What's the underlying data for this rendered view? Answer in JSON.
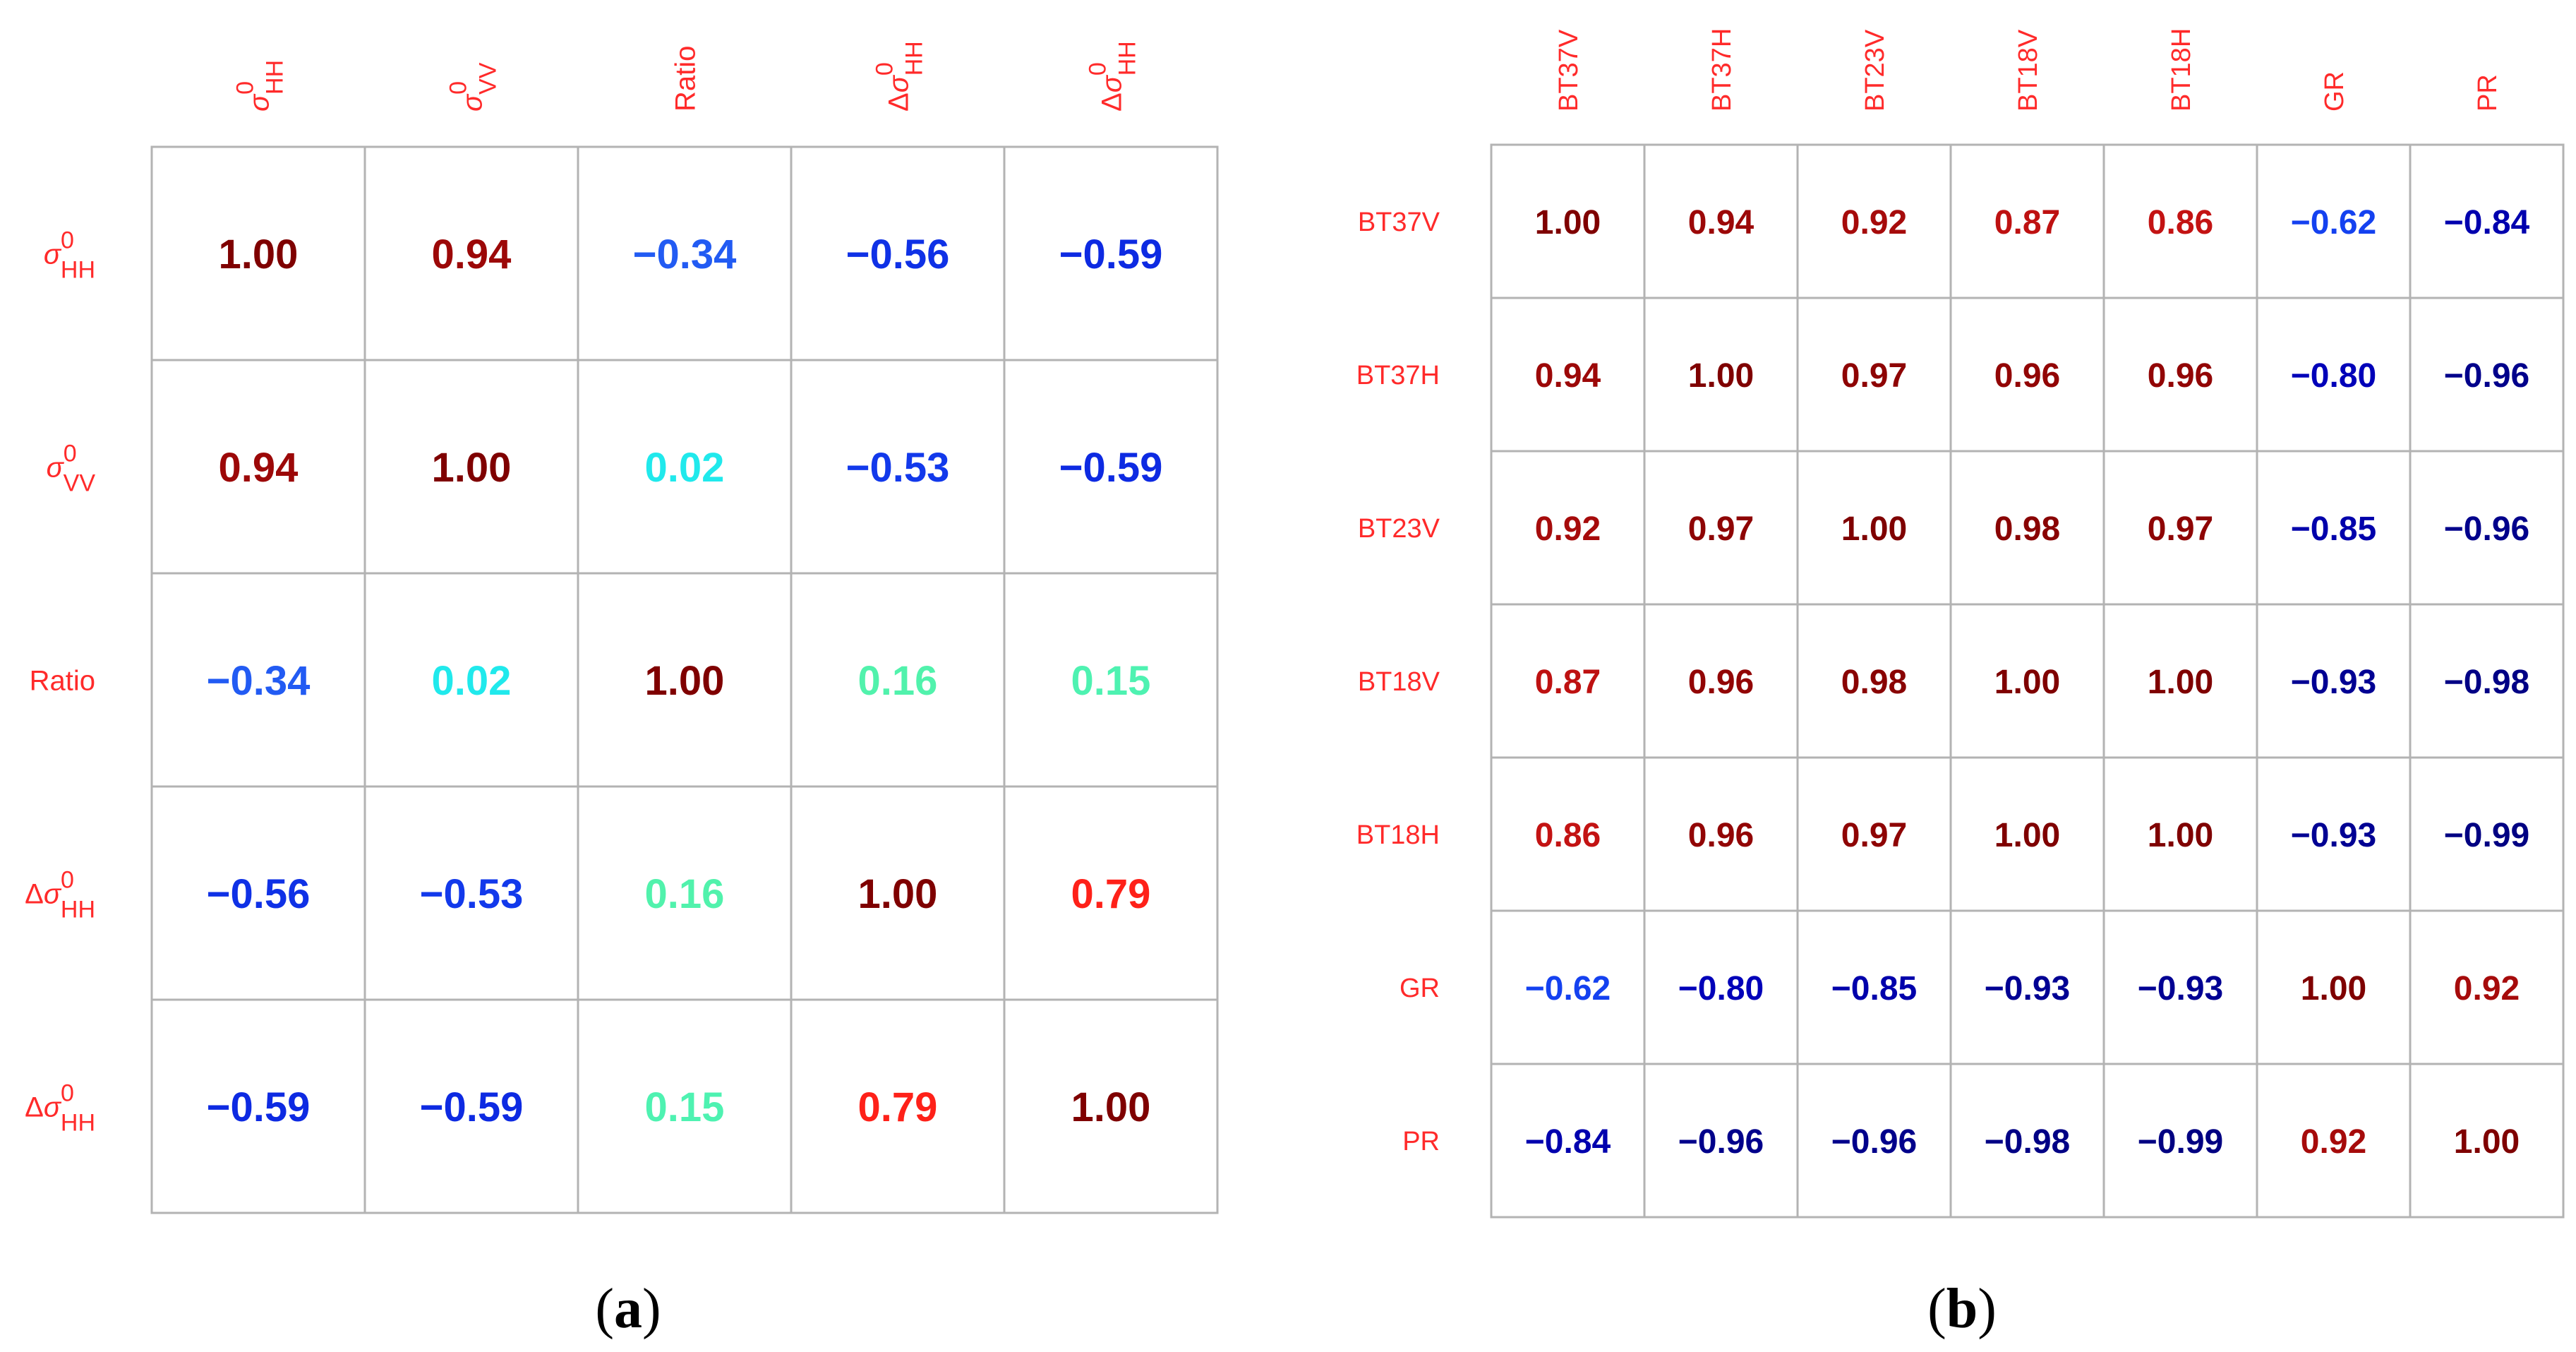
{
  "chart_data": [
    {
      "type": "heatmap",
      "panel": "a",
      "caption_open": "(",
      "caption_letter": "a",
      "caption_close": ")",
      "labels": [
        {
          "prefix": "",
          "base": "σ",
          "sup": "0",
          "sub": "HH"
        },
        {
          "prefix": "",
          "base": "σ",
          "sup": "0",
          "sub": "VV"
        },
        {
          "prefix": "",
          "base": "Ratio",
          "sup": "",
          "sub": ""
        },
        {
          "prefix": "Δ",
          "base": "σ",
          "sup": "0",
          "sub": "HH"
        },
        {
          "prefix": "Δ",
          "base": "σ",
          "sup": "0",
          "sub": "HH"
        }
      ],
      "matrix": [
        [
          "1.00",
          "0.94",
          "−0.34",
          "−0.56",
          "−0.59"
        ],
        [
          "0.94",
          "1.00",
          "0.02",
          "−0.53",
          "−0.59"
        ],
        [
          "−0.34",
          "0.02",
          "1.00",
          "0.16",
          "0.15"
        ],
        [
          "−0.56",
          "−0.53",
          "0.16",
          "1.00",
          "0.79"
        ],
        [
          "−0.59",
          "−0.59",
          "0.15",
          "0.79",
          "1.00"
        ]
      ],
      "label_color": "#ff2a2a",
      "color_scale": [
        {
          "v": -1.0,
          "c": "#00007f"
        },
        {
          "v": -0.75,
          "c": "#0000c8"
        },
        {
          "v": -0.5,
          "c": "#1441f0"
        },
        {
          "v": -0.25,
          "c": "#2a6af5"
        },
        {
          "v": 0.0,
          "c": "#19e8f5"
        },
        {
          "v": 0.2,
          "c": "#5ff59a"
        },
        {
          "v": 0.5,
          "c": "#e6e600"
        },
        {
          "v": 0.8,
          "c": "#ff1a1a"
        },
        {
          "v": 0.85,
          "c": "#c81414"
        },
        {
          "v": 1.0,
          "c": "#7f0000"
        }
      ]
    },
    {
      "type": "heatmap",
      "panel": "b",
      "caption_open": "(",
      "caption_letter": "b",
      "caption_close": ")",
      "labels": [
        {
          "prefix": "",
          "base": "BT37V",
          "sup": "",
          "sub": ""
        },
        {
          "prefix": "",
          "base": "BT37H",
          "sup": "",
          "sub": ""
        },
        {
          "prefix": "",
          "base": "BT23V",
          "sup": "",
          "sub": ""
        },
        {
          "prefix": "",
          "base": "BT18V",
          "sup": "",
          "sub": ""
        },
        {
          "prefix": "",
          "base": "BT18H",
          "sup": "",
          "sub": ""
        },
        {
          "prefix": "",
          "base": "GR",
          "sup": "",
          "sub": ""
        },
        {
          "prefix": "",
          "base": "PR",
          "sup": "",
          "sub": ""
        }
      ],
      "matrix": [
        [
          "1.00",
          "0.94",
          "0.92",
          "0.87",
          "0.86",
          "−0.62",
          "−0.84"
        ],
        [
          "0.94",
          "1.00",
          "0.97",
          "0.96",
          "0.96",
          "−0.80",
          "−0.96"
        ],
        [
          "0.92",
          "0.97",
          "1.00",
          "0.98",
          "0.97",
          "−0.85",
          "−0.96"
        ],
        [
          "0.87",
          "0.96",
          "0.98",
          "1.00",
          "1.00",
          "−0.93",
          "−0.98"
        ],
        [
          "0.86",
          "0.96",
          "0.97",
          "1.00",
          "1.00",
          "−0.93",
          "−0.99"
        ],
        [
          "−0.62",
          "−0.80",
          "−0.85",
          "−0.93",
          "−0.93",
          "1.00",
          "0.92"
        ],
        [
          "−0.84",
          "−0.96",
          "−0.96",
          "−0.98",
          "−0.99",
          "0.92",
          "1.00"
        ]
      ],
      "label_color": "#ff2a2a",
      "color_scale": [
        {
          "v": -1.0,
          "c": "#00007f"
        },
        {
          "v": -0.75,
          "c": "#0000c8"
        },
        {
          "v": -0.62,
          "c": "#1441f0"
        },
        {
          "v": -0.25,
          "c": "#2a6af5"
        },
        {
          "v": 0.0,
          "c": "#19e8f5"
        },
        {
          "v": 0.2,
          "c": "#5ff59a"
        },
        {
          "v": 0.5,
          "c": "#e6e600"
        },
        {
          "v": 0.8,
          "c": "#ff1a1a"
        },
        {
          "v": 0.85,
          "c": "#c81414"
        },
        {
          "v": 1.0,
          "c": "#7f0000"
        }
      ]
    }
  ]
}
